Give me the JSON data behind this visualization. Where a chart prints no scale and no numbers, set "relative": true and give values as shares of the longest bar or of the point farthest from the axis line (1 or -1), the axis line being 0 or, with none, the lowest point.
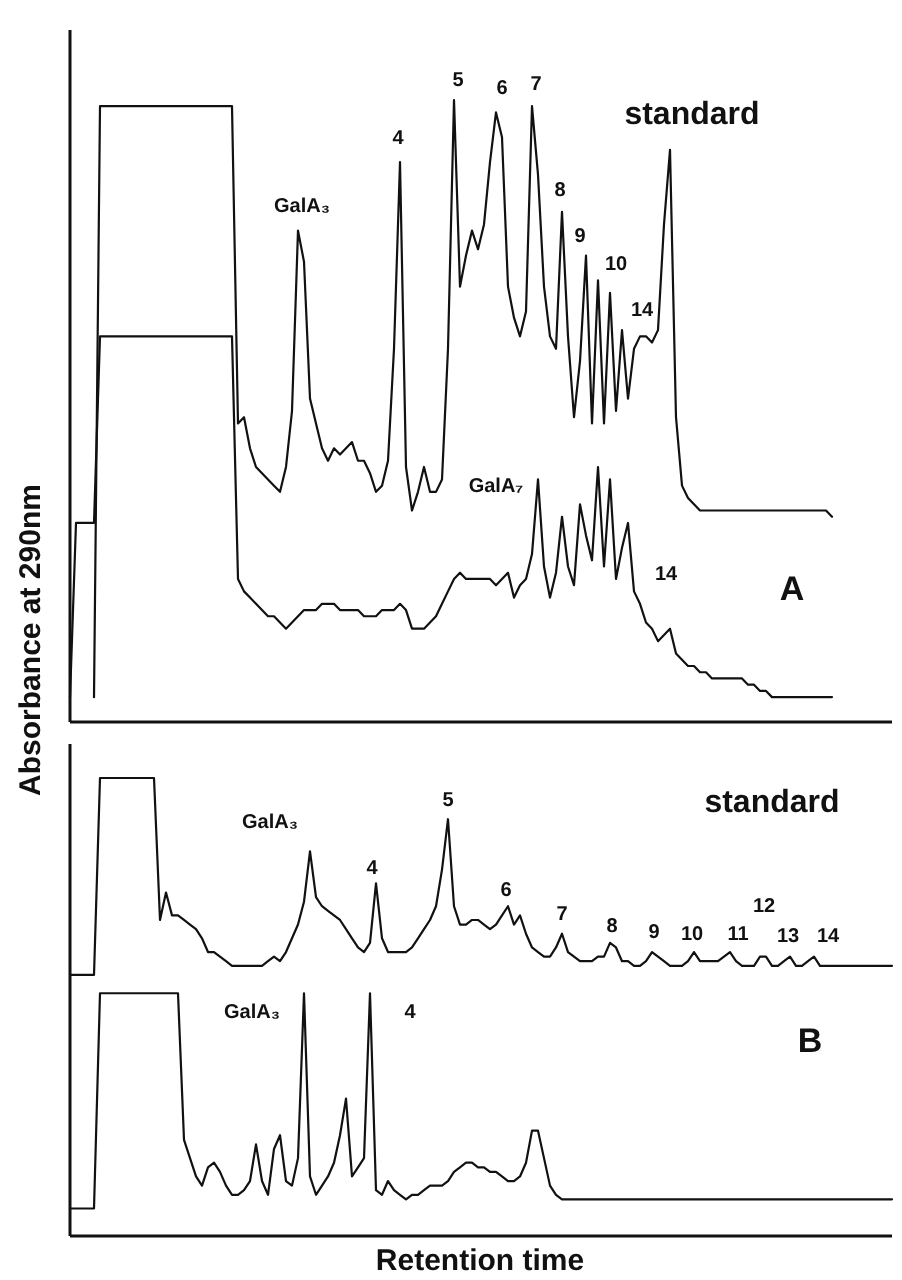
{
  "chart_data": [
    {
      "type": "line",
      "relative": true,
      "ylabel": "Absorbance at 290nm",
      "categories": [
        null,
        null,
        null,
        null,
        null,
        null,
        null,
        null,
        null,
        null,
        null,
        null,
        null,
        null,
        null,
        null,
        null,
        null,
        null,
        null,
        null,
        null,
        null,
        null,
        null,
        null,
        null,
        null,
        null,
        null,
        null,
        null,
        null,
        null,
        null,
        null,
        null,
        null,
        null,
        null,
        null,
        null,
        null,
        null,
        null,
        null,
        null,
        null,
        null,
        null,
        null,
        null,
        null,
        null,
        null,
        null,
        null,
        null,
        null,
        null,
        null,
        null,
        null,
        null,
        null,
        null,
        null,
        null,
        null,
        null,
        null,
        null,
        null,
        null,
        null,
        null,
        null,
        null,
        null,
        null,
        null,
        null,
        null,
        null,
        null,
        null,
        null,
        null,
        null,
        null,
        null,
        null,
        null,
        null,
        null,
        null,
        null,
        null,
        null,
        null,
        null,
        null,
        null,
        null,
        null,
        null,
        null,
        null,
        null,
        null,
        null,
        null,
        null,
        null,
        null,
        null,
        null,
        null,
        null,
        null,
        null,
        null,
        null,
        null,
        null,
        null,
        null,
        null,
        null,
        null,
        null,
        null,
        null,
        null,
        null,
        null,
        null,
        null
      ],
      "annotations": [
        "standard",
        "A",
        "GalA₃",
        "4",
        "5",
        "6",
        "7",
        "8",
        "9",
        "10",
        "14",
        "GalA₇",
        "14"
      ],
      "series": [
        {
          "color": "#111111",
          "values": [
            null,
            null,
            null,
            null,
            0.04,
            0.99,
            0.99,
            0.99,
            0.99,
            0.99,
            0.99,
            0.99,
            0.99,
            0.99,
            0.99,
            0.99,
            0.99,
            0.99,
            0.99,
            0.99,
            0.99,
            0.99,
            0.99,
            0.99,
            0.99,
            0.99,
            0.99,
            0.99,
            0.48,
            0.49,
            0.44,
            0.41,
            0.4,
            0.39,
            0.38,
            0.37,
            0.41,
            0.5,
            0.79,
            0.74,
            0.52,
            0.48,
            0.44,
            0.42,
            0.44,
            0.43,
            0.44,
            0.45,
            0.42,
            0.42,
            0.4,
            0.37,
            0.38,
            0.42,
            0.6,
            0.9,
            0.41,
            0.34,
            0.37,
            0.41,
            0.37,
            0.37,
            0.39,
            0.6,
            1.0,
            0.7,
            0.75,
            0.79,
            0.76,
            0.8,
            0.9,
            0.98,
            0.94,
            0.7,
            0.65,
            0.62,
            0.66,
            0.99,
            0.88,
            0.7,
            0.62,
            0.6,
            0.82,
            0.62,
            0.49,
            0.58,
            0.75,
            0.48,
            0.71,
            0.48,
            0.69,
            0.5,
            0.63,
            0.52,
            0.6,
            0.62,
            0.62,
            0.61,
            0.63,
            0.8,
            0.92,
            0.49,
            0.38,
            0.36,
            0.35,
            0.34,
            0.34,
            0.34,
            0.34,
            0.34,
            0.34,
            0.34,
            0.34,
            0.34,
            0.34,
            0.34,
            0.34,
            0.34,
            0.34,
            0.34,
            0.34,
            0.34,
            0.34,
            0.34,
            0.34,
            0.34,
            0.34,
            0.33,
            null,
            null,
            null,
            null,
            null,
            null,
            null,
            null,
            null,
            null
          ]
        },
        {
          "color": "#111111",
          "values": [
            0.04,
            0.32,
            0.32,
            0.32,
            0.32,
            0.62,
            0.62,
            0.62,
            0.62,
            0.62,
            0.62,
            0.62,
            0.62,
            0.62,
            0.62,
            0.62,
            0.62,
            0.62,
            0.62,
            0.62,
            0.62,
            0.62,
            0.62,
            0.62,
            0.62,
            0.62,
            0.62,
            0.62,
            0.23,
            0.21,
            0.2,
            0.19,
            0.18,
            0.17,
            0.17,
            0.16,
            0.15,
            0.16,
            0.17,
            0.18,
            0.18,
            0.18,
            0.19,
            0.19,
            0.19,
            0.18,
            0.18,
            0.18,
            0.18,
            0.17,
            0.17,
            0.17,
            0.18,
            0.18,
            0.18,
            0.19,
            0.18,
            0.15,
            0.15,
            0.15,
            0.16,
            0.17,
            0.19,
            0.21,
            0.23,
            0.24,
            0.23,
            0.23,
            0.23,
            0.23,
            0.23,
            0.22,
            0.23,
            0.24,
            0.2,
            0.22,
            0.23,
            0.27,
            0.39,
            0.25,
            0.2,
            0.24,
            0.33,
            0.25,
            0.22,
            0.35,
            0.3,
            0.26,
            0.41,
            0.25,
            0.39,
            0.23,
            0.28,
            0.32,
            0.21,
            0.19,
            0.16,
            0.15,
            0.13,
            0.14,
            0.15,
            0.11,
            0.1,
            0.09,
            0.09,
            0.08,
            0.08,
            0.07,
            0.07,
            0.07,
            0.07,
            0.07,
            0.07,
            0.06,
            0.06,
            0.05,
            0.05,
            0.04,
            0.04,
            0.04,
            0.04,
            0.04,
            0.04,
            0.04,
            0.04,
            0.04,
            0.04,
            0.04,
            null,
            null,
            null,
            null,
            null,
            null,
            null,
            null,
            null,
            null
          ]
        }
      ]
    },
    {
      "type": "line",
      "relative": true,
      "xlabel": "Retention time",
      "categories": [
        null,
        null,
        null,
        null,
        null,
        null,
        null,
        null,
        null,
        null,
        null,
        null,
        null,
        null,
        null,
        null,
        null,
        null,
        null,
        null,
        null,
        null,
        null,
        null,
        null,
        null,
        null,
        null,
        null,
        null,
        null,
        null,
        null,
        null,
        null,
        null,
        null,
        null,
        null,
        null,
        null,
        null,
        null,
        null,
        null,
        null,
        null,
        null,
        null,
        null,
        null,
        null,
        null,
        null,
        null,
        null,
        null,
        null,
        null,
        null,
        null,
        null,
        null,
        null,
        null,
        null,
        null,
        null,
        null,
        null,
        null,
        null,
        null,
        null,
        null,
        null,
        null,
        null,
        null,
        null,
        null,
        null,
        null,
        null,
        null,
        null,
        null,
        null,
        null,
        null,
        null,
        null,
        null,
        null,
        null,
        null,
        null,
        null,
        null,
        null,
        null,
        null,
        null,
        null,
        null,
        null,
        null,
        null,
        null,
        null,
        null,
        null,
        null,
        null,
        null,
        null,
        null,
        null,
        null,
        null,
        null,
        null,
        null,
        null,
        null,
        null,
        null,
        null,
        null,
        null,
        null,
        null,
        null,
        null,
        null,
        null,
        null,
        null
      ],
      "annotations": [
        "standard",
        "B",
        "GalA₃",
        "4",
        "5",
        "6",
        "7",
        "8",
        "9",
        "10",
        "11",
        "12",
        "13",
        "14",
        "GalA₃",
        "4"
      ],
      "series": [
        {
          "color": "#111111",
          "values": [
            0.57,
            0.57,
            0.57,
            0.57,
            0.57,
            1.0,
            1.0,
            1.0,
            1.0,
            1.0,
            1.0,
            1.0,
            1.0,
            1.0,
            1.0,
            0.69,
            0.75,
            0.7,
            0.7,
            0.69,
            0.68,
            0.67,
            0.65,
            0.62,
            0.62,
            0.61,
            0.6,
            0.59,
            0.59,
            0.59,
            0.59,
            0.59,
            0.59,
            0.6,
            0.61,
            0.6,
            0.62,
            0.65,
            0.68,
            0.73,
            0.84,
            0.74,
            0.72,
            0.71,
            0.7,
            0.69,
            0.67,
            0.65,
            0.63,
            0.62,
            0.64,
            0.77,
            0.65,
            0.62,
            0.62,
            0.62,
            0.62,
            0.63,
            0.65,
            0.67,
            0.69,
            0.72,
            0.8,
            0.91,
            0.72,
            0.68,
            0.68,
            0.69,
            0.69,
            0.68,
            0.67,
            0.68,
            0.7,
            0.72,
            0.68,
            0.7,
            0.66,
            0.63,
            0.62,
            0.61,
            0.61,
            0.63,
            0.66,
            0.62,
            0.61,
            0.6,
            0.6,
            0.6,
            0.61,
            0.61,
            0.64,
            0.63,
            0.6,
            0.6,
            0.59,
            0.59,
            0.6,
            0.62,
            0.61,
            0.6,
            0.59,
            0.59,
            0.59,
            0.6,
            0.62,
            0.6,
            0.6,
            0.6,
            0.6,
            0.61,
            0.62,
            0.6,
            0.59,
            0.59,
            0.59,
            0.61,
            0.61,
            0.59,
            0.59,
            0.6,
            0.61,
            0.59,
            0.59,
            0.6,
            0.61,
            0.59,
            0.59,
            0.59,
            0.59,
            0.59,
            0.59,
            0.59,
            0.59,
            0.59,
            0.59,
            0.59,
            0.59,
            0.59
          ]
        },
        {
          "color": "#111111",
          "values": [
            0.06,
            0.06,
            0.06,
            0.06,
            0.06,
            0.53,
            0.53,
            0.53,
            0.53,
            0.53,
            0.53,
            0.53,
            0.53,
            0.53,
            0.53,
            0.53,
            0.53,
            0.53,
            0.53,
            0.21,
            0.17,
            0.13,
            0.11,
            0.15,
            0.16,
            0.14,
            0.11,
            0.09,
            0.09,
            0.1,
            0.12,
            0.2,
            0.12,
            0.09,
            0.19,
            0.22,
            0.12,
            0.11,
            0.17,
            0.53,
            0.13,
            0.09,
            0.11,
            0.13,
            0.16,
            0.22,
            0.3,
            0.13,
            0.15,
            0.17,
            0.53,
            0.1,
            0.09,
            0.12,
            0.1,
            0.09,
            0.08,
            0.09,
            0.09,
            0.1,
            0.11,
            0.11,
            0.11,
            0.12,
            0.14,
            0.15,
            0.16,
            0.16,
            0.15,
            0.15,
            0.14,
            0.14,
            0.13,
            0.12,
            0.12,
            0.13,
            0.16,
            0.23,
            0.23,
            0.17,
            0.11,
            0.09,
            0.08,
            0.08,
            0.08,
            0.08,
            0.08,
            0.08,
            0.08,
            0.08,
            0.08,
            0.08,
            0.08,
            0.08,
            0.08,
            0.08,
            0.08,
            0.08,
            0.08,
            0.08,
            0.08,
            0.08,
            0.08,
            0.08,
            0.08,
            0.08,
            0.08,
            0.08,
            0.08,
            0.08,
            0.08,
            0.08,
            0.08,
            0.08,
            0.08,
            0.08,
            0.08,
            0.08,
            0.08,
            0.08,
            0.08,
            0.08,
            0.08,
            0.08,
            0.08,
            0.08,
            0.08,
            0.08,
            0.08,
            0.08,
            0.08,
            0.08,
            0.08,
            0.08,
            0.08,
            0.08,
            0.08,
            0.08
          ]
        }
      ]
    }
  ]
}
